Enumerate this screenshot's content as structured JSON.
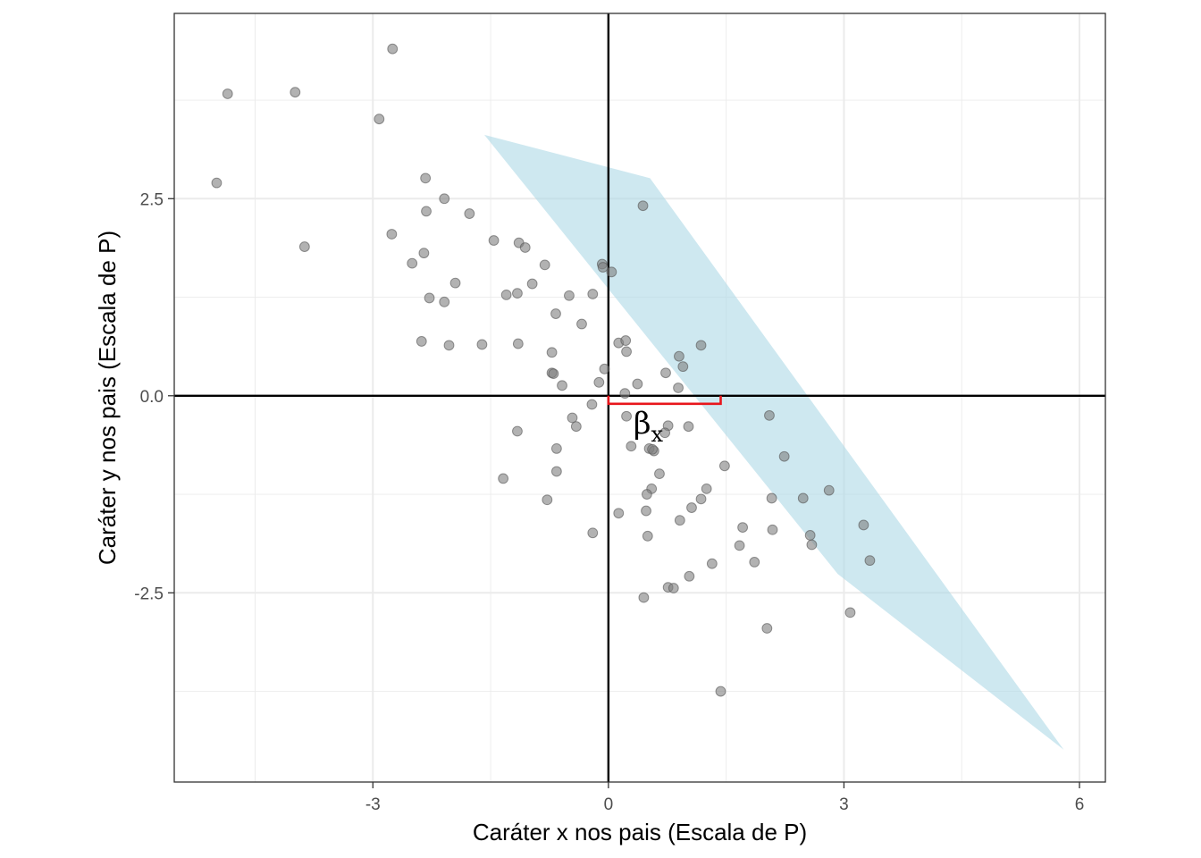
{
  "chart_data": {
    "type": "scatter",
    "title": "",
    "xlabel": "Caráter x nos pais (Escala de P)",
    "ylabel": "Caráter y nos pais (Escala de P)",
    "xlim": [
      -5.53,
      6.33
    ],
    "ylim": [
      -4.9,
      4.85
    ],
    "x_ticks": [
      {
        "value": -3,
        "label": "-3"
      },
      {
        "value": 0,
        "label": "0"
      },
      {
        "value": 3,
        "label": "3"
      },
      {
        "value": 6,
        "label": "6"
      }
    ],
    "y_ticks": [
      {
        "value": -2.5,
        "label": "-2.5"
      },
      {
        "value": 0,
        "label": "0.0"
      },
      {
        "value": 2.5,
        "label": "2.5"
      }
    ],
    "x_minor_gridlines": [
      -4.5,
      -1.5,
      1.5,
      4.5
    ],
    "y_minor_gridlines": [
      -3.75,
      -1.25,
      1.25,
      3.75
    ],
    "grid": true,
    "reference_lines": {
      "x": 0,
      "y": 0
    },
    "points": [
      {
        "x": -4.85,
        "y": 3.83
      },
      {
        "x": -4.99,
        "y": 2.7
      },
      {
        "x": -3.99,
        "y": 3.85
      },
      {
        "x": -3.87,
        "y": 1.89
      },
      {
        "x": -2.75,
        "y": 4.4
      },
      {
        "x": -2.92,
        "y": 3.51
      },
      {
        "x": -2.76,
        "y": 2.05
      },
      {
        "x": -2.33,
        "y": 2.76
      },
      {
        "x": -2.32,
        "y": 2.34
      },
      {
        "x": -2.09,
        "y": 2.5
      },
      {
        "x": -1.77,
        "y": 2.31
      },
      {
        "x": -2.35,
        "y": 1.81
      },
      {
        "x": -2.5,
        "y": 1.68
      },
      {
        "x": -1.95,
        "y": 1.43
      },
      {
        "x": -2.28,
        "y": 1.24
      },
      {
        "x": -2.09,
        "y": 1.19
      },
      {
        "x": -2.38,
        "y": 0.69
      },
      {
        "x": -2.03,
        "y": 0.64
      },
      {
        "x": -1.61,
        "y": 0.65
      },
      {
        "x": -1.46,
        "y": 1.97
      },
      {
        "x": -1.14,
        "y": 1.94
      },
      {
        "x": -1.06,
        "y": 1.88
      },
      {
        "x": -0.81,
        "y": 1.66
      },
      {
        "x": -0.97,
        "y": 1.42
      },
      {
        "x": -1.3,
        "y": 1.28
      },
      {
        "x": -1.16,
        "y": 1.3
      },
      {
        "x": -0.5,
        "y": 1.27
      },
      {
        "x": -0.2,
        "y": 1.29
      },
      {
        "x": -0.67,
        "y": 1.04
      },
      {
        "x": -0.34,
        "y": 0.91
      },
      {
        "x": -1.15,
        "y": 0.66
      },
      {
        "x": -0.72,
        "y": 0.55
      },
      {
        "x": -0.72,
        "y": 0.29
      },
      {
        "x": -0.7,
        "y": 0.28
      },
      {
        "x": -0.59,
        "y": 0.13
      },
      {
        "x": -0.08,
        "y": 1.67
      },
      {
        "x": -0.07,
        "y": 1.63
      },
      {
        "x": 0.04,
        "y": 1.57
      },
      {
        "x": 0.44,
        "y": 2.41
      },
      {
        "x": 0.13,
        "y": 0.67
      },
      {
        "x": 0.22,
        "y": 0.7
      },
      {
        "x": 0.23,
        "y": 0.56
      },
      {
        "x": -0.05,
        "y": 0.34
      },
      {
        "x": 0.73,
        "y": 0.29
      },
      {
        "x": 0.9,
        "y": 0.5
      },
      {
        "x": 0.95,
        "y": 0.37
      },
      {
        "x": 1.18,
        "y": 0.64
      },
      {
        "x": 0.89,
        "y": 0.1
      },
      {
        "x": -0.12,
        "y": 0.17
      },
      {
        "x": 0.37,
        "y": 0.15
      },
      {
        "x": 0.21,
        "y": 0.03
      },
      {
        "x": -0.21,
        "y": -0.11
      },
      {
        "x": -0.46,
        "y": -0.28
      },
      {
        "x": -0.41,
        "y": -0.39
      },
      {
        "x": 0.23,
        "y": -0.26
      },
      {
        "x": 0.76,
        "y": -0.38
      },
      {
        "x": 1.02,
        "y": -0.39
      },
      {
        "x": 0.72,
        "y": -0.47
      },
      {
        "x": 0.29,
        "y": -0.64
      },
      {
        "x": 0.52,
        "y": -0.67
      },
      {
        "x": 0.58,
        "y": -0.7
      },
      {
        "x": 0.56,
        "y": -0.68
      },
      {
        "x": -1.16,
        "y": -0.45
      },
      {
        "x": -0.66,
        "y": -0.67
      },
      {
        "x": -0.66,
        "y": -0.96
      },
      {
        "x": -1.34,
        "y": -1.05
      },
      {
        "x": 0.65,
        "y": -0.99
      },
      {
        "x": 1.48,
        "y": -0.89
      },
      {
        "x": 0.55,
        "y": -1.18
      },
      {
        "x": 0.49,
        "y": -1.25
      },
      {
        "x": 1.25,
        "y": -1.18
      },
      {
        "x": 1.18,
        "y": -1.31
      },
      {
        "x": 1.06,
        "y": -1.42
      },
      {
        "x": 0.48,
        "y": -1.46
      },
      {
        "x": 0.13,
        "y": -1.49
      },
      {
        "x": 0.91,
        "y": -1.58
      },
      {
        "x": 1.71,
        "y": -1.67
      },
      {
        "x": 2.09,
        "y": -1.7
      },
      {
        "x": 0.5,
        "y": -1.78
      },
      {
        "x": -0.2,
        "y": -1.74
      },
      {
        "x": 1.67,
        "y": -1.9
      },
      {
        "x": 1.86,
        "y": -2.11
      },
      {
        "x": 1.32,
        "y": -2.13
      },
      {
        "x": 1.03,
        "y": -2.29
      },
      {
        "x": 0.76,
        "y": -2.43
      },
      {
        "x": 0.83,
        "y": -2.44
      },
      {
        "x": 0.45,
        "y": -2.56
      },
      {
        "x": -0.78,
        "y": -1.32
      },
      {
        "x": 2.05,
        "y": -0.25
      },
      {
        "x": 2.24,
        "y": -0.77
      },
      {
        "x": 2.48,
        "y": -1.3
      },
      {
        "x": 2.81,
        "y": -1.2
      },
      {
        "x": 2.57,
        "y": -1.77
      },
      {
        "x": 2.59,
        "y": -1.89
      },
      {
        "x": 3.25,
        "y": -1.64
      },
      {
        "x": 3.33,
        "y": -2.09
      },
      {
        "x": 2.08,
        "y": -1.3
      },
      {
        "x": 3.08,
        "y": -2.75
      },
      {
        "x": 2.02,
        "y": -2.95
      },
      {
        "x": 1.43,
        "y": -3.75
      }
    ],
    "region": [
      {
        "x": -1.58,
        "y": 3.31
      },
      {
        "x": 0.53,
        "y": 2.76
      },
      {
        "x": 5.8,
        "y": -4.49
      },
      {
        "x": 2.92,
        "y": -2.26
      }
    ],
    "beta_bracket": {
      "x_start": 0,
      "x_end": 1.43,
      "y": 0
    },
    "colors": {
      "points": "#7f7f7f",
      "region": "#add8e6",
      "bracket": "#e8161c",
      "grid": "#ebebeb",
      "reference_lines": "#000000"
    }
  },
  "annotation": {
    "beta_symbol": "β",
    "beta_subscript": "x"
  }
}
